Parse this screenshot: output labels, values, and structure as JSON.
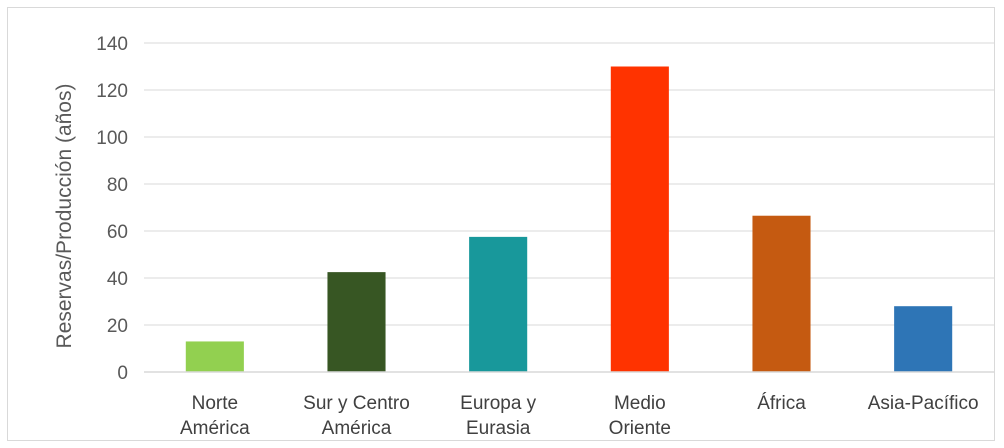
{
  "chart_data": {
    "type": "bar",
    "title": "",
    "xlabel": "",
    "ylabel": "Reservas/Producción (años)",
    "categories": [
      [
        "Norte",
        "América"
      ],
      [
        "Sur y Centro",
        "América"
      ],
      [
        "Europa y",
        "Eurasia"
      ],
      [
        "Medio",
        "Oriente"
      ],
      [
        "África"
      ],
      [
        "Asia-Pacífico"
      ]
    ],
    "values": [
      13,
      42.5,
      57.5,
      130,
      66.5,
      28
    ],
    "colors": [
      "#92d050",
      "#375623",
      "#18989b",
      "#ff3300",
      "#c55a11",
      "#2e75b6"
    ],
    "ylim": [
      0,
      140
    ],
    "yticks": [
      0,
      20,
      40,
      60,
      80,
      100,
      120,
      140
    ],
    "grid": true,
    "legend": "none"
  }
}
